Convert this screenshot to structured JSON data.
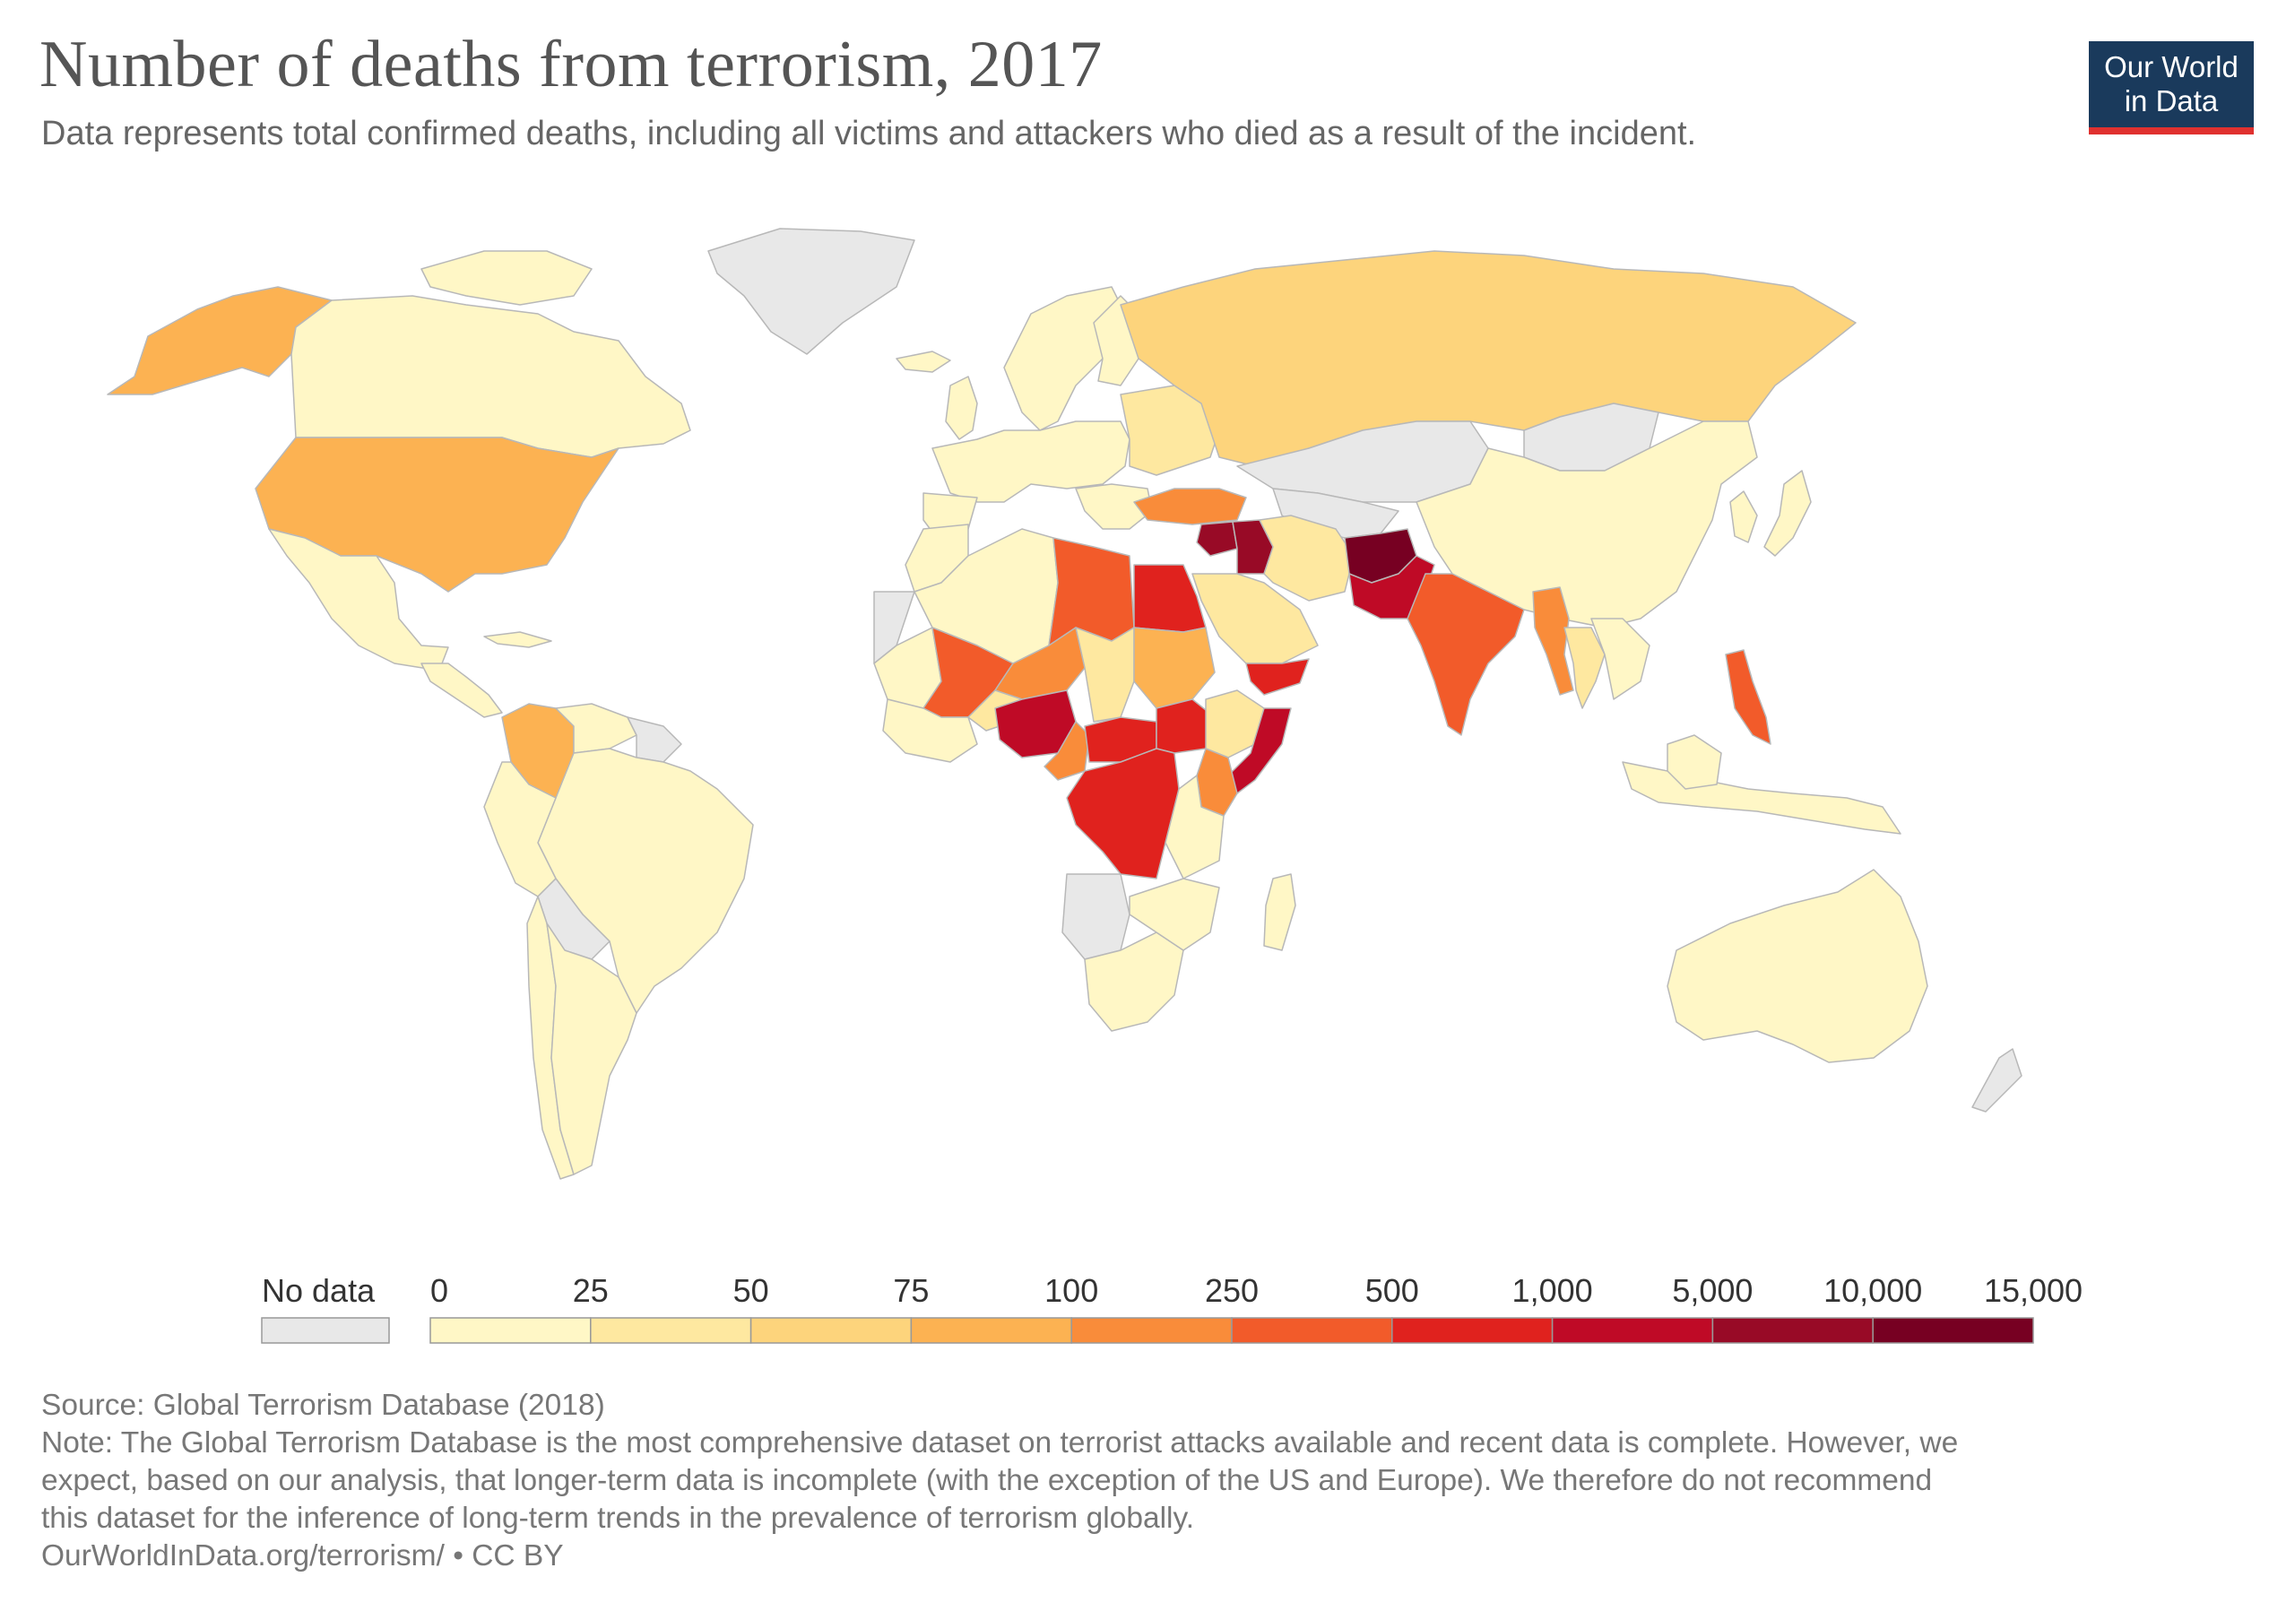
{
  "header": {
    "title": "Number of deaths from terrorism, 2017",
    "subtitle": "Data represents total confirmed deaths, including all victims and attackers who died as a result of the incident."
  },
  "logo": {
    "line1": "Our World",
    "line2": "in Data",
    "bg_color": "#1a3a5c",
    "accent_color": "#e0312f"
  },
  "legend": {
    "no_data_label": "No data",
    "no_data_color": "#e8e8e8",
    "ticks": [
      "0",
      "25",
      "50",
      "75",
      "100",
      "250",
      "500",
      "1,000",
      "5,000",
      "10,000",
      "15,000"
    ],
    "bin_colors": [
      "#fff7c6",
      "#fee8a0",
      "#fdd47c",
      "#fcb252",
      "#f98c3a",
      "#f25b2a",
      "#e0221e",
      "#bf0a26",
      "#980a26",
      "#770022"
    ]
  },
  "chart_data": {
    "type": "choropleth",
    "year": 2017,
    "unit": "deaths",
    "bins": [
      [
        0,
        25
      ],
      [
        25,
        50
      ],
      [
        50,
        75
      ],
      [
        75,
        100
      ],
      [
        100,
        250
      ],
      [
        250,
        500
      ],
      [
        500,
        1000
      ],
      [
        1000,
        5000
      ],
      [
        5000,
        10000
      ],
      [
        10000,
        15000
      ]
    ],
    "countries": [
      {
        "name": "Afghanistan",
        "bin": 9
      },
      {
        "name": "Iraq",
        "bin": 8
      },
      {
        "name": "Syria",
        "bin": 8
      },
      {
        "name": "Somalia",
        "bin": 7
      },
      {
        "name": "Nigeria",
        "bin": 7
      },
      {
        "name": "Pakistan",
        "bin": 7
      },
      {
        "name": "Egypt",
        "bin": 6
      },
      {
        "name": "Democratic Republic of the Congo",
        "bin": 6
      },
      {
        "name": "Central African Republic",
        "bin": 6
      },
      {
        "name": "South Sudan",
        "bin": 6
      },
      {
        "name": "Yemen",
        "bin": 6
      },
      {
        "name": "India",
        "bin": 5
      },
      {
        "name": "Libya",
        "bin": 5
      },
      {
        "name": "Mali",
        "bin": 5
      },
      {
        "name": "Philippines",
        "bin": 5
      },
      {
        "name": "Myanmar",
        "bin": 4
      },
      {
        "name": "Turkey",
        "bin": 4
      },
      {
        "name": "Kenya",
        "bin": 4
      },
      {
        "name": "Cameroon",
        "bin": 4
      },
      {
        "name": "Niger",
        "bin": 4
      },
      {
        "name": "Sudan",
        "bin": 3
      },
      {
        "name": "United States",
        "bin": 3
      },
      {
        "name": "Colombia",
        "bin": 3
      },
      {
        "name": "Ethiopia",
        "bin": 2
      },
      {
        "name": "Russia",
        "bin": 2
      },
      {
        "name": "Chad",
        "bin": 2
      },
      {
        "name": "Burkina Faso",
        "bin": 2
      },
      {
        "name": "Thailand",
        "bin": 2
      },
      {
        "name": "Iran",
        "bin": 1
      },
      {
        "name": "Saudi Arabia",
        "bin": 1
      },
      {
        "name": "China",
        "bin": 0
      },
      {
        "name": "Canada",
        "bin": 0
      },
      {
        "name": "Brazil",
        "bin": 0
      },
      {
        "name": "Australia",
        "bin": 0
      },
      {
        "name": "Algeria",
        "bin": 0
      },
      {
        "name": "Mexico",
        "bin": 0
      },
      {
        "name": "Argentina",
        "bin": 0
      },
      {
        "name": "Peru",
        "bin": 0
      },
      {
        "name": "Indonesia",
        "bin": 0
      },
      {
        "name": "South Africa",
        "bin": 0
      },
      {
        "name": "Greenland",
        "bin": null
      },
      {
        "name": "Kazakhstan",
        "bin": null
      },
      {
        "name": "Mongolia",
        "bin": null
      },
      {
        "name": "Angola",
        "bin": null
      },
      {
        "name": "Western Sahara",
        "bin": null
      }
    ]
  },
  "footer": {
    "source": "Source: Global Terrorism Database (2018)",
    "note_line1": "Note: The Global Terrorism Database is the most comprehensive dataset on terrorist attacks available and recent data is complete. However, we",
    "note_line2": "expect, based on our analysis, that longer-term data is incomplete (with the exception of the US and Europe). We therefore do not recommend",
    "note_line3": "this dataset for the inference of long-term trends in the prevalence of terrorism globally.",
    "url_line": "OurWorldInData.org/terrorism/ • CC BY"
  }
}
